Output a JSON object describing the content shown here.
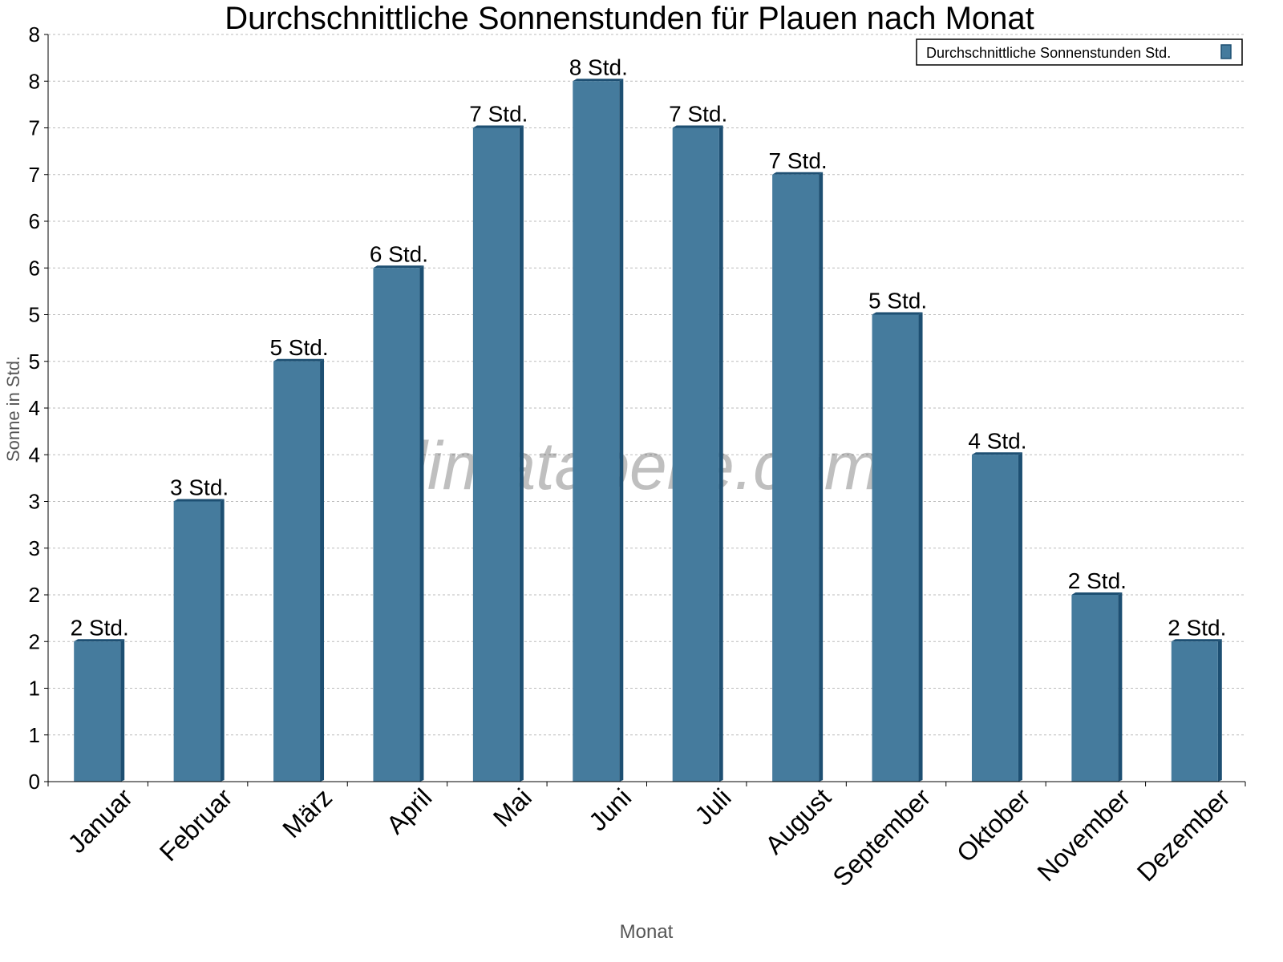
{
  "chart_data": {
    "type": "bar",
    "title": "Durchschnittliche Sonnenstunden für Plauen nach Monat",
    "xlabel": "Monat",
    "ylabel": "Sonne in Std.",
    "ylim": [
      0,
      8
    ],
    "yticks": [
      0,
      0.5,
      1,
      1.5,
      2,
      2.5,
      3,
      3.5,
      4,
      4.5,
      5,
      5.5,
      6,
      6.5,
      7,
      7.5,
      8
    ],
    "ytick_labels": [
      "0",
      "1",
      "1",
      "2",
      "2",
      "3",
      "3",
      "4",
      "4",
      "5",
      "5",
      "6",
      "6",
      "7",
      "7",
      "8",
      "8"
    ],
    "grid": true,
    "legend_position": "top-right",
    "categories": [
      "Januar",
      "Februar",
      "März",
      "April",
      "Mai",
      "Juni",
      "Juli",
      "August",
      "September",
      "Oktober",
      "November",
      "Dezember"
    ],
    "series": [
      {
        "name": "Durchschnittliche Sonnenstunden Std.",
        "color": "#457b9d",
        "side_color": "#1d4f72",
        "values": [
          1.5,
          3.0,
          4.5,
          5.5,
          7.0,
          7.5,
          7.0,
          6.5,
          5.0,
          3.5,
          2.0,
          1.5
        ],
        "data_labels": [
          "2 Std.",
          "3 Std.",
          "5 Std.",
          "6 Std.",
          "7 Std.",
          "8 Std.",
          "7 Std.",
          "7 Std.",
          "5 Std.",
          "4 Std.",
          "2 Std.",
          "2 Std."
        ]
      }
    ],
    "watermark": "klimatabelle.com"
  }
}
